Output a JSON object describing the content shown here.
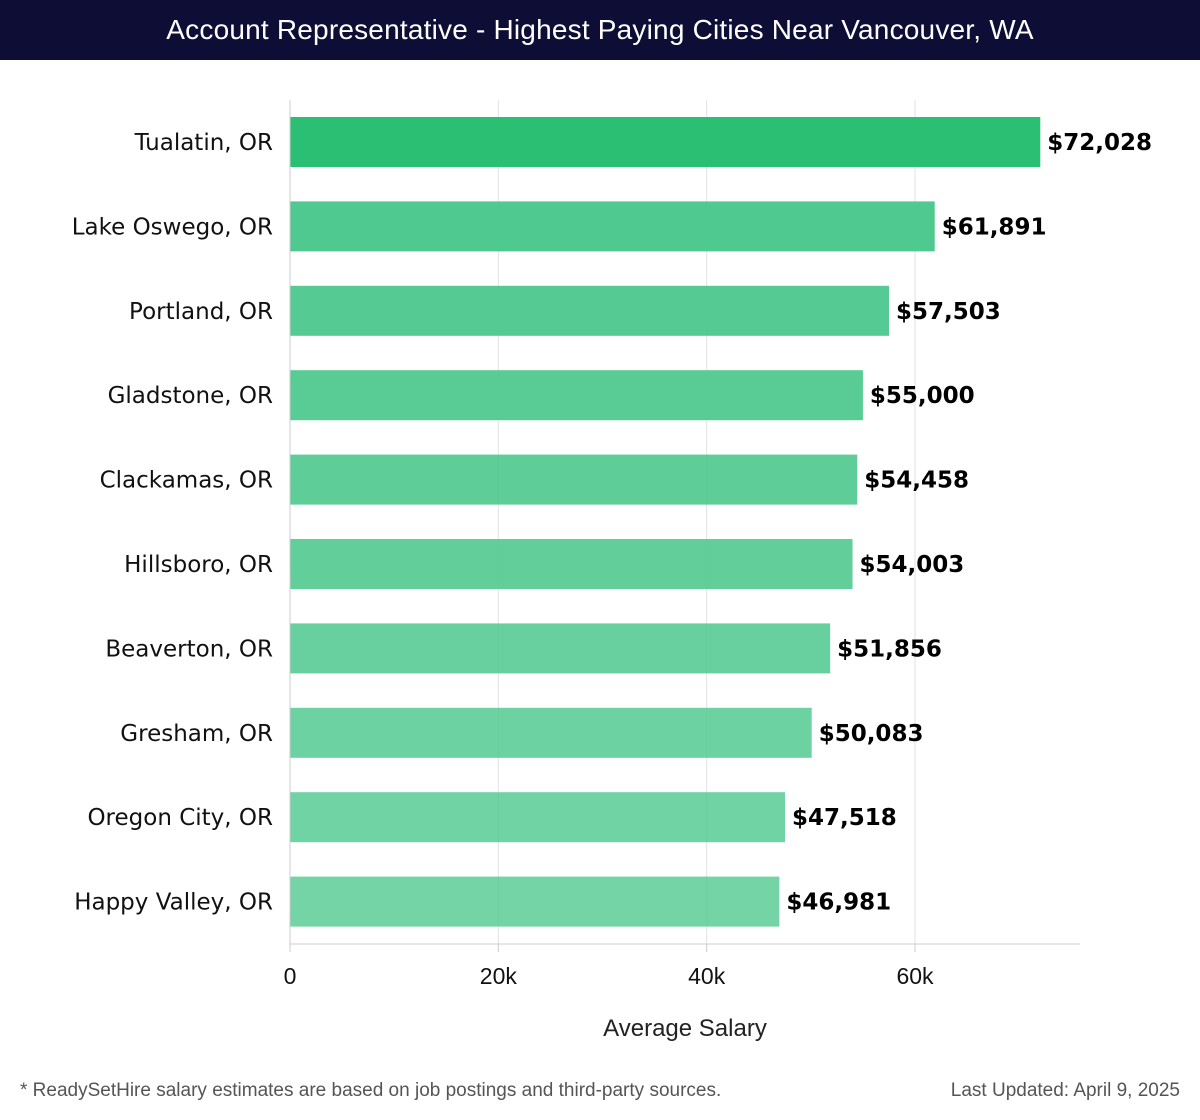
{
  "header": {
    "title": "Account Representative - Highest Paying Cities Near Vancouver, WA"
  },
  "footer": {
    "note": "* ReadySetHire salary estimates are based on job postings and third-party sources.",
    "updated": "Last Updated: April 9, 2025"
  },
  "colors": {
    "bar_top": "#2bbf74",
    "bar_other": "#4cc88d",
    "header_bg": "#0d0d35"
  },
  "chart_data": {
    "type": "bar",
    "orientation": "horizontal",
    "title": "Account Representative - Highest Paying Cities Near Vancouver, WA",
    "xlabel": "Average Salary",
    "ylabel": "",
    "xlim": [
      0,
      76000
    ],
    "xticks": [
      0,
      20000,
      40000,
      60000
    ],
    "xtick_labels": [
      "0",
      "20k",
      "40k",
      "60k"
    ],
    "grid": true,
    "categories": [
      "Tualatin, OR",
      "Lake Oswego, OR",
      "Portland, OR",
      "Gladstone, OR",
      "Clackamas, OR",
      "Hillsboro, OR",
      "Beaverton, OR",
      "Gresham, OR",
      "Oregon City, OR",
      "Happy Valley, OR"
    ],
    "values": [
      72028,
      61891,
      57503,
      55000,
      54458,
      54003,
      51856,
      50083,
      47518,
      46981
    ],
    "value_labels": [
      "$72,028",
      "$61,891",
      "$57,503",
      "$55,000",
      "$54,458",
      "$54,003",
      "$51,856",
      "$50,083",
      "$47,518",
      "$46,981"
    ]
  }
}
